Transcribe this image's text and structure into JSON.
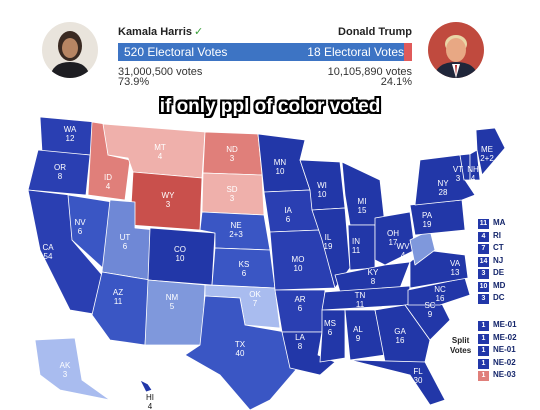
{
  "header": {
    "left": {
      "name": "Kamala Harris",
      "bar_label": "520 Electoral Votes",
      "votes": "31,000,500 votes",
      "percent": "73.9%",
      "color": "#3d74c4"
    },
    "right": {
      "name": "Donald Trump",
      "bar_label": "18 Electoral Votes",
      "votes": "10,105,890 votes",
      "percent": "24.1%",
      "color": "#e05a5a"
    }
  },
  "banner": "if only ppl of color voted",
  "colors": {
    "safe_blue": "#2237a8",
    "likely_blue": "#3a56c4",
    "lean_blue": "#7f98dc",
    "tilt_blue": "#a9bcef",
    "safe_red": "#c9504c",
    "likely_red": "#e07f7a",
    "lean_red": "#efb0ab"
  },
  "states": [
    {
      "abbr": "WA",
      "ev": "12",
      "color": "#2a3fb2"
    },
    {
      "abbr": "OR",
      "ev": "8",
      "color": "#2a3fb2"
    },
    {
      "abbr": "CA",
      "ev": "54",
      "color": "#2a3fb2"
    },
    {
      "abbr": "NV",
      "ev": "6",
      "color": "#3a56c4"
    },
    {
      "abbr": "ID",
      "ev": "4",
      "color": "#e07f7a"
    },
    {
      "abbr": "MT",
      "ev": "4",
      "color": "#efb0ab"
    },
    {
      "abbr": "WY",
      "ev": "3",
      "color": "#c9504c"
    },
    {
      "abbr": "UT",
      "ev": "6",
      "color": "#6f88d6"
    },
    {
      "abbr": "AZ",
      "ev": "11",
      "color": "#3a56c4"
    },
    {
      "abbr": "CO",
      "ev": "10",
      "color": "#2237a8"
    },
    {
      "abbr": "NM",
      "ev": "5",
      "color": "#7f98dc"
    },
    {
      "abbr": "ND",
      "ev": "3",
      "color": "#e07f7a"
    },
    {
      "abbr": "SD",
      "ev": "3",
      "color": "#efb0ab"
    },
    {
      "abbr": "NE",
      "ev": "2+3",
      "color": "#3a56c4"
    },
    {
      "abbr": "KS",
      "ev": "6",
      "color": "#3a56c4"
    },
    {
      "abbr": "OK",
      "ev": "7",
      "color": "#a9bcef"
    },
    {
      "abbr": "TX",
      "ev": "40",
      "color": "#3a56c4"
    },
    {
      "abbr": "MN",
      "ev": "10",
      "color": "#2237a8"
    },
    {
      "abbr": "IA",
      "ev": "6",
      "color": "#2a3fb2"
    },
    {
      "abbr": "MO",
      "ev": "10",
      "color": "#2a3fb2"
    },
    {
      "abbr": "AR",
      "ev": "6",
      "color": "#2a3fb2"
    },
    {
      "abbr": "LA",
      "ev": "8",
      "color": "#2237a8"
    },
    {
      "abbr": "WI",
      "ev": "10",
      "color": "#2237a8"
    },
    {
      "abbr": "IL",
      "ev": "19",
      "color": "#2237a8"
    },
    {
      "abbr": "MI",
      "ev": "15",
      "color": "#2237a8"
    },
    {
      "abbr": "IN",
      "ev": "11",
      "color": "#2237a8"
    },
    {
      "abbr": "OH",
      "ev": "17",
      "color": "#2237a8"
    },
    {
      "abbr": "KY",
      "ev": "8",
      "color": "#2237a8"
    },
    {
      "abbr": "TN",
      "ev": "11",
      "color": "#2237a8"
    },
    {
      "abbr": "MS",
      "ev": "6",
      "color": "#2237a8"
    },
    {
      "abbr": "AL",
      "ev": "9",
      "color": "#2237a8"
    },
    {
      "abbr": "GA",
      "ev": "16",
      "color": "#2237a8"
    },
    {
      "abbr": "FL",
      "ev": "30",
      "color": "#2237a8"
    },
    {
      "abbr": "SC",
      "ev": "9",
      "color": "#2237a8"
    },
    {
      "abbr": "NC",
      "ev": "16",
      "color": "#2237a8"
    },
    {
      "abbr": "VA",
      "ev": "13",
      "color": "#2237a8"
    },
    {
      "abbr": "WV",
      "ev": "4",
      "color": "#7f98dc"
    },
    {
      "abbr": "PA",
      "ev": "19",
      "color": "#2237a8"
    },
    {
      "abbr": "NY",
      "ev": "28",
      "color": "#2237a8"
    },
    {
      "abbr": "VT",
      "ev": "3",
      "color": "#2237a8"
    },
    {
      "abbr": "NH",
      "ev": "4",
      "color": "#2237a8"
    },
    {
      "abbr": "ME",
      "ev": "2+2",
      "color": "#2237a8"
    },
    {
      "abbr": "AK",
      "ev": "3",
      "color": "#a9bcef"
    },
    {
      "abbr": "HI",
      "ev": "4",
      "color": "#2237a8"
    }
  ],
  "small_states": [
    {
      "ev": "11",
      "abbr": "MA"
    },
    {
      "ev": "4",
      "abbr": "RI"
    },
    {
      "ev": "7",
      "abbr": "CT"
    },
    {
      "ev": "14",
      "abbr": "NJ"
    },
    {
      "ev": "3",
      "abbr": "DE"
    },
    {
      "ev": "10",
      "abbr": "MD"
    },
    {
      "ev": "3",
      "abbr": "DC"
    }
  ],
  "split_label": "Split\nVotes",
  "split_votes": [
    {
      "ev": "1",
      "abbr": "ME-01",
      "color": "#2237a8"
    },
    {
      "ev": "1",
      "abbr": "ME-02",
      "color": "#2237a8"
    },
    {
      "ev": "1",
      "abbr": "NE-01",
      "color": "#2237a8"
    },
    {
      "ev": "1",
      "abbr": "NE-02",
      "color": "#2237a8"
    },
    {
      "ev": "1",
      "abbr": "NE-03",
      "color": "#e07f7a"
    }
  ]
}
